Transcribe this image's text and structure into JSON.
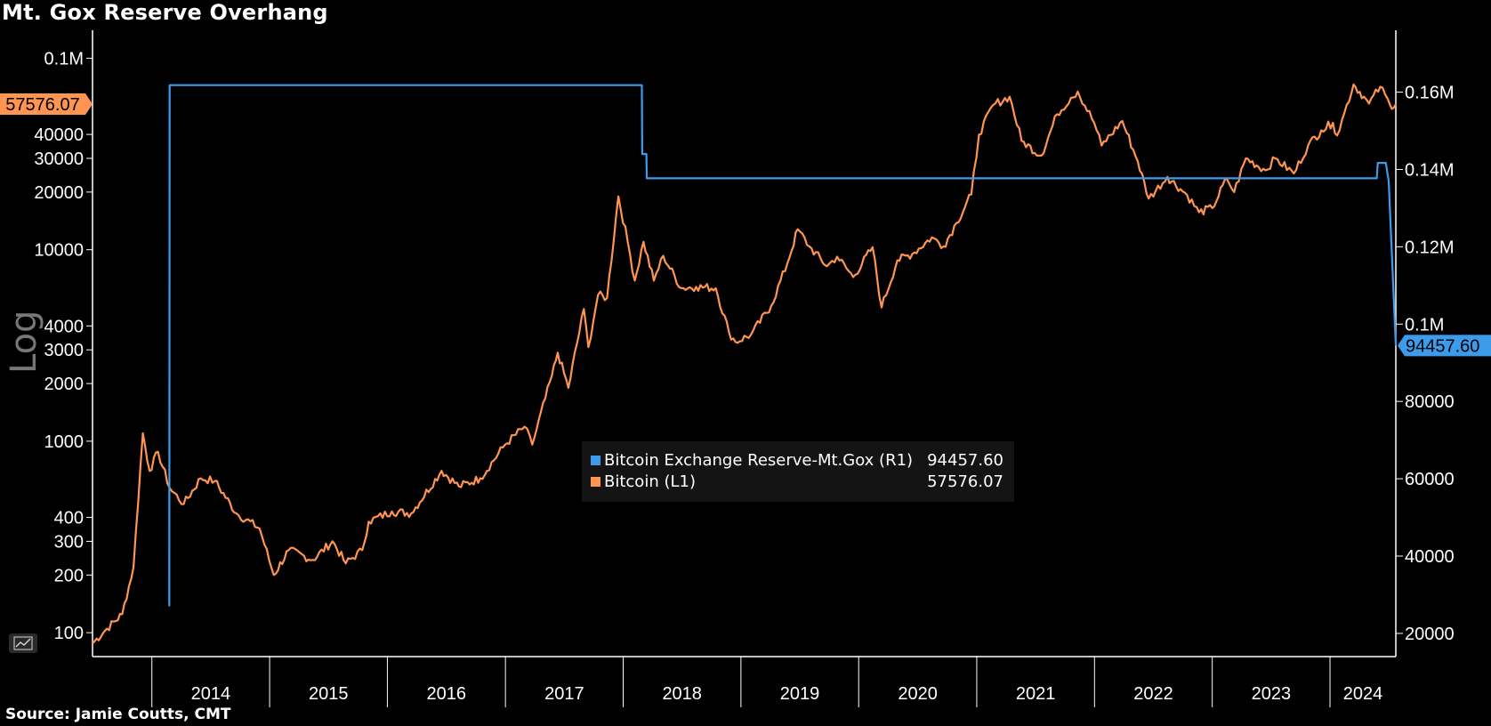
{
  "title": "Mt. Gox Reserve Overhang",
  "source": "Source: Jamie Coutts, CMT",
  "scale_label": "Log",
  "colors": {
    "background": "#000000",
    "bitcoin": "#ff9551",
    "reserve": "#3d9bec",
    "axis": "#ffffff"
  },
  "icons": {
    "chart_toggle": "line-chart-icon"
  },
  "legend": [
    {
      "label": "Bitcoin Exchange Reserve-Mt.Gox (R1)",
      "value": "94457.60",
      "color": "#3d9bec"
    },
    {
      "label": "Bitcoin (L1)",
      "value": "57576.07",
      "color": "#ff9551"
    }
  ],
  "last_value_tags": {
    "left": "57576.07",
    "right": "94457.60"
  },
  "chart_data": {
    "type": "line",
    "title": "Mt. Gox Reserve Overhang",
    "x_ticks": [
      "2014",
      "2015",
      "2016",
      "2017",
      "2018",
      "2019",
      "2020",
      "2021",
      "2022",
      "2023",
      "2024"
    ],
    "xlim": [
      "2013-07-01",
      "2024-07-23"
    ],
    "left_axis": {
      "scale": "log",
      "ylim": [
        75,
        140000
      ],
      "tick_labels": [
        "100",
        "200",
        "300",
        "400",
        "1000",
        "2000",
        "3000",
        "4000",
        "10000",
        "20000",
        "30000",
        "40000",
        "0.1M"
      ],
      "tick_values": [
        100,
        200,
        300,
        400,
        1000,
        2000,
        3000,
        4000,
        10000,
        20000,
        30000,
        40000,
        100000
      ]
    },
    "right_axis": {
      "scale": "linear",
      "ylim": [
        14000,
        176000
      ],
      "tick_labels": [
        "20000",
        "40000",
        "60000",
        "80000",
        "0.1M",
        "0.12M",
        "0.14M",
        "0.16M"
      ],
      "tick_values": [
        20000,
        40000,
        60000,
        80000,
        100000,
        120000,
        140000,
        160000
      ]
    },
    "grid": false,
    "legend_position": "center",
    "series": [
      {
        "name": "Bitcoin (L1)",
        "axis": "left",
        "color": "#ff9551",
        "x": [
          "2013-07-01",
          "2013-08-15",
          "2013-10-01",
          "2013-11-05",
          "2013-12-04",
          "2013-12-25",
          "2014-01-20",
          "2014-02-25",
          "2014-04-10",
          "2014-06-01",
          "2014-07-15",
          "2014-09-20",
          "2014-12-01",
          "2015-01-14",
          "2015-03-01",
          "2015-05-15",
          "2015-07-15",
          "2015-08-25",
          "2015-10-15",
          "2015-11-04",
          "2016-01-15",
          "2016-03-15",
          "2016-06-17",
          "2016-08-10",
          "2016-10-15",
          "2016-12-31",
          "2017-03-01",
          "2017-03-25",
          "2017-05-25",
          "2017-06-12",
          "2017-07-15",
          "2017-09-01",
          "2017-09-15",
          "2017-10-15",
          "2017-11-12",
          "2017-12-17",
          "2018-01-15",
          "2018-02-06",
          "2018-03-05",
          "2018-04-06",
          "2018-05-05",
          "2018-06-30",
          "2018-08-15",
          "2018-10-15",
          "2018-11-25",
          "2018-12-15",
          "2019-02-01",
          "2019-04-05",
          "2019-05-25",
          "2019-06-26",
          "2019-08-01",
          "2019-09-25",
          "2019-10-26",
          "2019-12-15",
          "2020-02-13",
          "2020-03-12",
          "2020-04-30",
          "2020-06-15",
          "2020-08-15",
          "2020-09-20",
          "2020-10-30",
          "2020-12-15",
          "2021-01-08",
          "2021-02-21",
          "2021-04-13",
          "2021-05-20",
          "2021-07-20",
          "2021-09-07",
          "2021-10-20",
          "2021-11-10",
          "2021-12-31",
          "2022-01-23",
          "2022-03-28",
          "2022-05-15",
          "2022-06-18",
          "2022-08-15",
          "2022-10-15",
          "2022-11-21",
          "2023-01-01",
          "2023-02-15",
          "2023-03-10",
          "2023-04-15",
          "2023-06-15",
          "2023-07-15",
          "2023-09-11",
          "2023-10-25",
          "2023-12-05",
          "2024-01-10",
          "2024-01-23",
          "2024-02-15",
          "2024-03-14",
          "2024-04-15",
          "2024-05-01",
          "2024-06-05",
          "2024-07-05",
          "2024-07-23"
        ],
        "y": [
          88,
          105,
          125,
          220,
          1100,
          700,
          880,
          570,
          470,
          640,
          620,
          420,
          350,
          200,
          270,
          240,
          300,
          230,
          270,
          380,
          430,
          420,
          700,
          580,
          640,
          960,
          1190,
          960,
          2200,
          2900,
          1900,
          4900,
          3100,
          5800,
          5600,
          19000,
          11000,
          6900,
          11000,
          6900,
          9300,
          6300,
          6400,
          6300,
          3700,
          3300,
          3600,
          5100,
          8500,
          12800,
          10400,
          8200,
          9200,
          7200,
          10300,
          5000,
          8800,
          9500,
          11600,
          10400,
          13800,
          19400,
          40000,
          57000,
          63000,
          37000,
          31000,
          51000,
          62000,
          67000,
          46000,
          35000,
          47000,
          29000,
          18500,
          24000,
          19300,
          15700,
          16500,
          23500,
          20000,
          30000,
          26000,
          30000,
          25000,
          35000,
          42000,
          46000,
          39500,
          52000,
          73000,
          63000,
          58000,
          71000,
          57000,
          57576.07
        ]
      },
      {
        "name": "Bitcoin Exchange Reserve-Mt.Gox (R1)",
        "axis": "right",
        "color": "#3d9bec",
        "x": [
          "2014-02-24",
          "2014-02-25",
          "2018-02-28",
          "2018-03-01",
          "2018-03-14",
          "2018-03-15",
          "2024-05-25",
          "2024-05-28",
          "2024-06-22",
          "2024-07-01",
          "2024-07-23"
        ],
        "y": [
          27000,
          161800,
          161800,
          144000,
          144000,
          137700,
          137700,
          141700,
          141700,
          137000,
          94457.6
        ]
      }
    ]
  }
}
